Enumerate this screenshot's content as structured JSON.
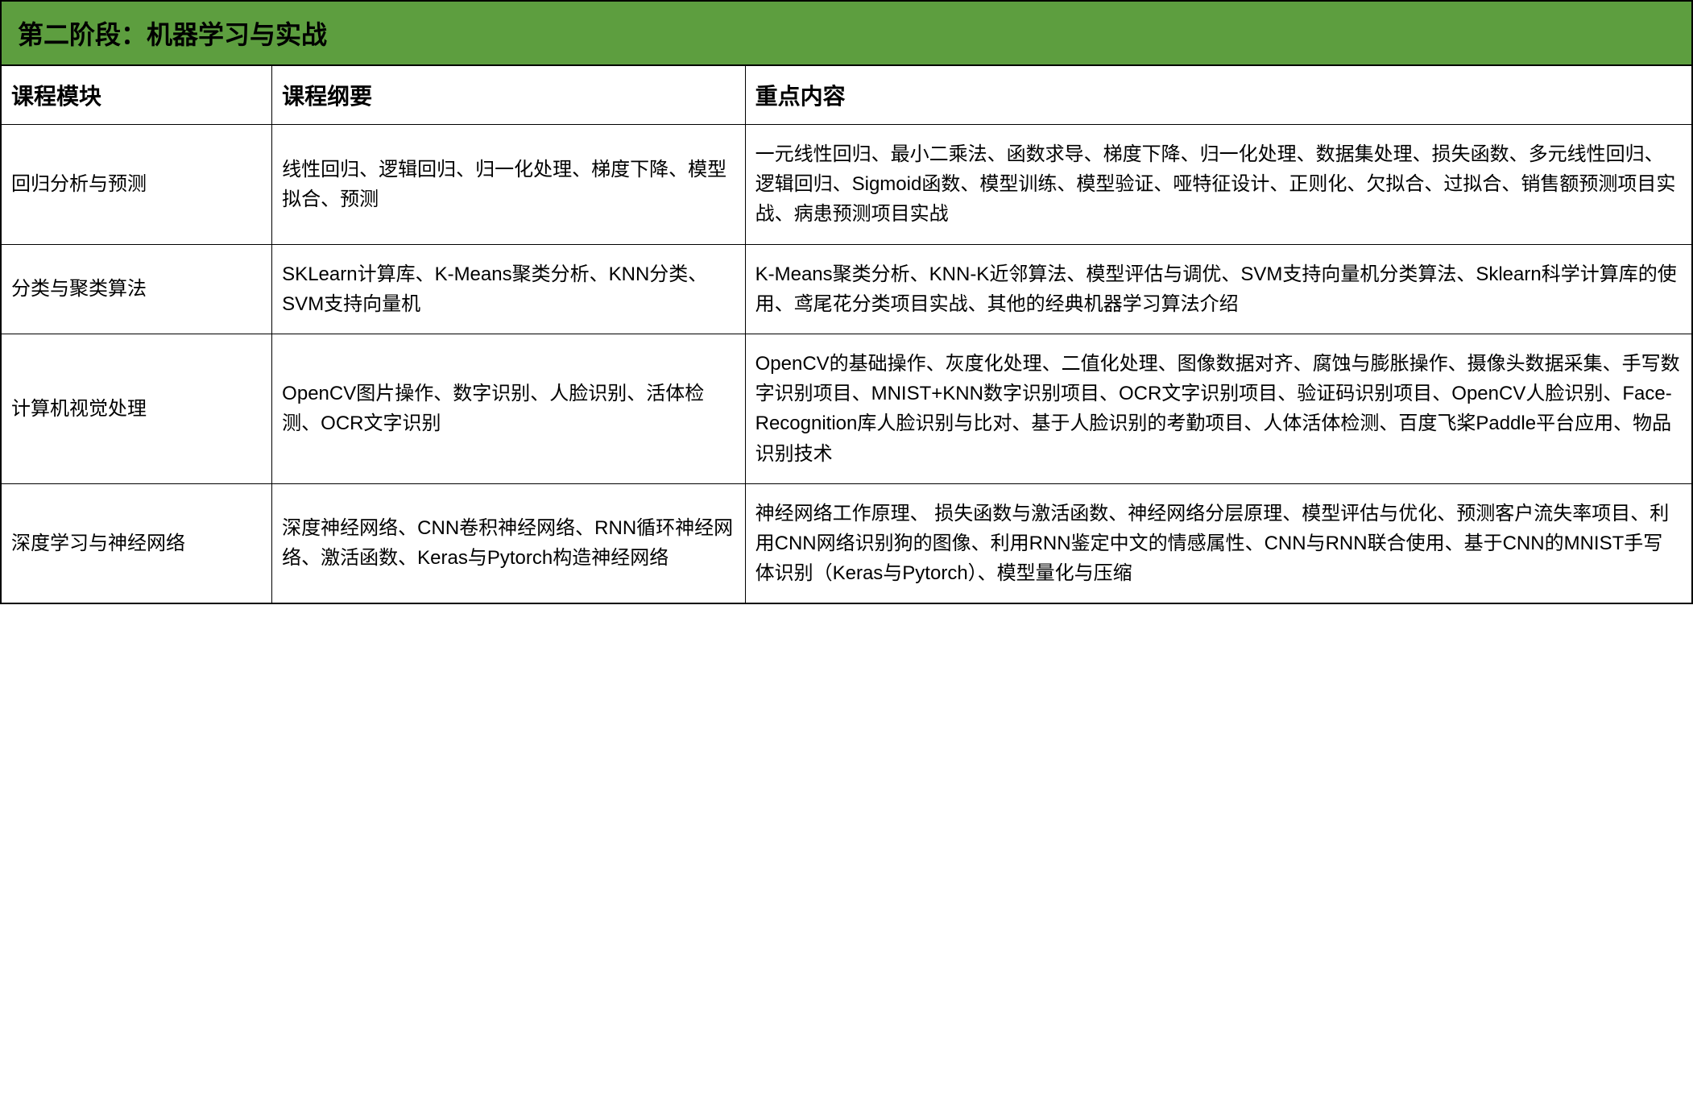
{
  "table": {
    "title": "第二阶段：机器学习与实战",
    "title_bg_color": "#5d9e3f",
    "border_color": "#000000",
    "text_color": "#000000",
    "bg_color": "#ffffff",
    "title_fontsize": 32,
    "header_fontsize": 28,
    "cell_fontsize": 24,
    "columns": [
      {
        "label": "课程模块",
        "width_pct": 16
      },
      {
        "label": "课程纲要",
        "width_pct": 28
      },
      {
        "label": "重点内容",
        "width_pct": 56
      }
    ],
    "rows": [
      {
        "module": "回归分析与预测",
        "outline": "线性回归、逻辑回归、归一化处理、梯度下降、模型拟合、预测",
        "topics": "一元线性回归、最小二乘法、函数求导、梯度下降、归一化处理、数据集处理、损失函数、多元线性回归、逻辑回归、Sigmoid函数、模型训练、模型验证、哑特征设计、正则化、欠拟合、过拟合、销售额预测项目实战、病患预测项目实战"
      },
      {
        "module": "分类与聚类算法",
        "outline": "SKLearn计算库、K-Means聚类分析、KNN分类、SVM支持向量机",
        "topics": "K-Means聚类分析、KNN-K近邻算法、模型评估与调优、SVM支持向量机分类算法、Sklearn科学计算库的使用、鸢尾花分类项目实战、其他的经典机器学习算法介绍"
      },
      {
        "module": "计算机视觉处理",
        "outline": "OpenCV图片操作、数字识别、人脸识别、活体检测、OCR文字识别",
        "topics": "OpenCV的基础操作、灰度化处理、二值化处理、图像数据对齐、腐蚀与膨胀操作、摄像头数据采集、手写数字识别项目、MNIST+KNN数字识别项目、OCR文字识别项目、验证码识别项目、OpenCV人脸识别、Face-Recognition库人脸识别与比对、基于人脸识别的考勤项目、人体活体检测、百度飞桨Paddle平台应用、物品识别技术"
      },
      {
        "module": "深度学习与神经网络",
        "outline": "深度神经网络、CNN卷积神经网络、RNN循环神经网络、激活函数、Keras与Pytorch构造神经网络",
        "topics": "神经网络工作原理、 损失函数与激活函数、神经网络分层原理、模型评估与优化、预测客户流失率项目、利用CNN网络识别狗的图像、利用RNN鉴定中文的情感属性、CNN与RNN联合使用、基于CNN的MNIST手写体识别（Keras与Pytorch）、模型量化与压缩"
      }
    ]
  }
}
